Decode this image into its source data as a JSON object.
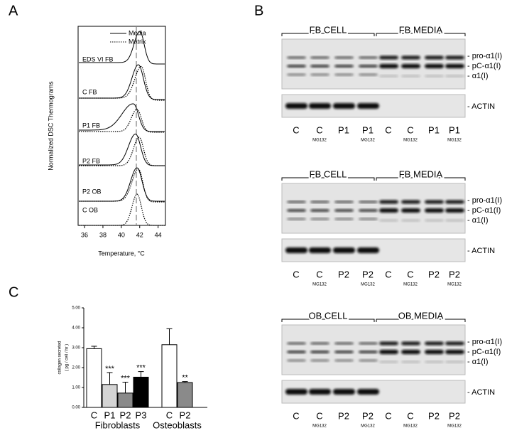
{
  "panel_labels": [
    "A",
    "B",
    "C"
  ],
  "thermograms": {
    "legend": [
      "Media",
      "Matrix"
    ],
    "samples": [
      "EDS VI FB",
      "C FB",
      "P1 FB",
      "P2 FB",
      "P2 OB",
      "C OB"
    ],
    "xlabel": "Temperature, °C",
    "ylabel": "Normalized DSC Thermograms",
    "xlim": [
      35.3,
      44.8
    ],
    "xticks": [
      36,
      38,
      40,
      42,
      44
    ]
  },
  "blots": [
    {
      "groups": [
        "FB CELL",
        "FB MEDIA"
      ],
      "lanes": [
        "C",
        "C",
        "P1",
        "P1",
        "C",
        "C",
        "P1",
        "P1"
      ],
      "treatment": [
        null,
        "MG132",
        null,
        "MG132",
        null,
        "MG132",
        null,
        "MG132"
      ],
      "bands": [
        "- pro-α1(I)",
        "- pC-α1(I)",
        "- α1(I)",
        "- ACTIN"
      ]
    },
    {
      "groups": [
        "FB CELL",
        "FB MEDIA"
      ],
      "lanes": [
        "C",
        "C",
        "P2",
        "P2",
        "C",
        "C",
        "P2",
        "P2"
      ],
      "treatment": [
        null,
        "MG132",
        null,
        "MG132",
        null,
        "MG132",
        null,
        "MG132"
      ],
      "bands": [
        "- pro-α1(I)",
        "- pC-α1(I)",
        "- α1(I)",
        "- ACTIN"
      ]
    },
    {
      "groups": [
        "OB CELL",
        "OB MEDIA"
      ],
      "lanes": [
        "C",
        "C",
        "P2",
        "P2",
        "C",
        "C",
        "P2",
        "P2"
      ],
      "treatment": [
        null,
        "MG132",
        null,
        "MG132",
        null,
        "MG132",
        null,
        "MG132"
      ],
      "bands": [
        "- pro-α1(I)",
        "- pC-α1(I)",
        "- α1(I)",
        "- ACTIN"
      ]
    }
  ],
  "chart_data": {
    "type": "bar",
    "ylabel": [
      "collagen secreted",
      "( pg / cell / hr )"
    ],
    "categories": [
      "C",
      "P1",
      "P2",
      "P3",
      "C",
      "P2"
    ],
    "groups": [
      "Fibroblasts",
      "Osteoblasts"
    ],
    "values": [
      2.95,
      1.15,
      0.72,
      1.52,
      3.15,
      1.25
    ],
    "errors": [
      0.12,
      0.6,
      0.55,
      0.28,
      0.8,
      0.05
    ],
    "colors": [
      "#ffffff",
      "#d4d4d4",
      "#8a8a8a",
      "#000000",
      "#ffffff",
      "#8a8a8a"
    ],
    "significance": [
      null,
      "***",
      "***",
      "***",
      null,
      "**"
    ],
    "ylim": [
      0,
      5
    ],
    "yticks": [
      {
        "value": 0,
        "label": "0.00"
      },
      {
        "value": 1,
        "label": "1.00"
      },
      {
        "value": 2,
        "label": "2.00"
      },
      {
        "value": 3,
        "label": "3.00"
      },
      {
        "value": 4,
        "label": "4.00"
      },
      {
        "value": 5,
        "label": "5.00"
      }
    ]
  }
}
